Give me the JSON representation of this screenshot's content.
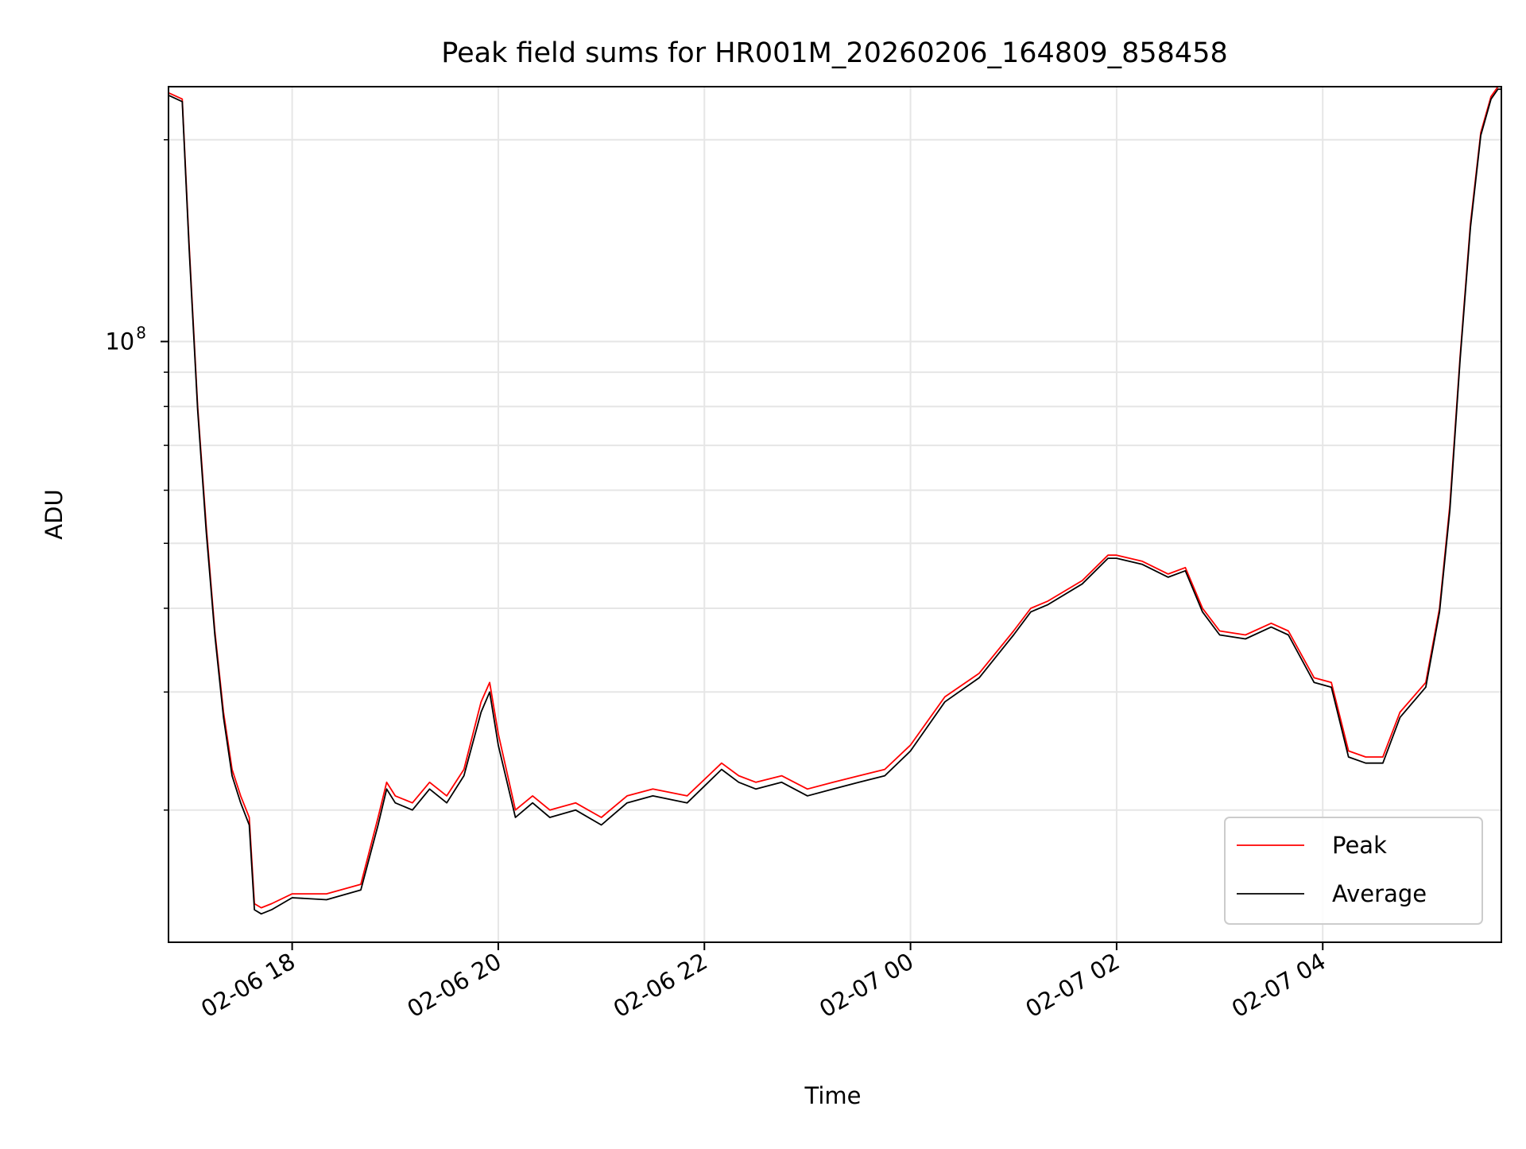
{
  "chart_data": {
    "type": "line",
    "title": "Peak field sums for HR001M_20260206_164809_858458",
    "xlabel": "Time",
    "ylabel": "ADU",
    "yscale": "log",
    "ylim": [
      12700000,
      240000000
    ],
    "xlim": [
      "2026-02-06 16:48",
      "2026-02-07 05:44"
    ],
    "x_ticks": [
      "02-06 18",
      "02-06 20",
      "02-06 22",
      "02-07 00",
      "02-07 02",
      "02-07 04"
    ],
    "x_tick_times": [
      "2026-02-06 18:00",
      "2026-02-06 20:00",
      "2026-02-06 22:00",
      "2026-02-07 00:00",
      "2026-02-07 02:00",
      "2026-02-07 04:00"
    ],
    "y_ticks": [
      {
        "base": "10",
        "exp": "8",
        "value": 100000000
      }
    ],
    "y_minor_ticks": [
      20000000,
      30000000,
      40000000,
      50000000,
      60000000,
      70000000,
      80000000,
      90000000,
      200000000
    ],
    "grid": true,
    "legend_position": "lower-right",
    "x": [
      "2026-02-06 16:48",
      "2026-02-06 16:56",
      "2026-02-06 17:00",
      "2026-02-06 17:05",
      "2026-02-06 17:10",
      "2026-02-06 17:15",
      "2026-02-06 17:20",
      "2026-02-06 17:25",
      "2026-02-06 17:30",
      "2026-02-06 17:35",
      "2026-02-06 17:38",
      "2026-02-06 17:42",
      "2026-02-06 17:48",
      "2026-02-06 18:00",
      "2026-02-06 18:20",
      "2026-02-06 18:40",
      "2026-02-06 18:50",
      "2026-02-06 18:55",
      "2026-02-06 19:00",
      "2026-02-06 19:10",
      "2026-02-06 19:20",
      "2026-02-06 19:30",
      "2026-02-06 19:40",
      "2026-02-06 19:50",
      "2026-02-06 19:55",
      "2026-02-06 20:00",
      "2026-02-06 20:10",
      "2026-02-06 20:20",
      "2026-02-06 20:30",
      "2026-02-06 20:45",
      "2026-02-06 21:00",
      "2026-02-06 21:15",
      "2026-02-06 21:30",
      "2026-02-06 21:50",
      "2026-02-06 22:10",
      "2026-02-06 22:20",
      "2026-02-06 22:30",
      "2026-02-06 22:45",
      "2026-02-06 23:00",
      "2026-02-06 23:15",
      "2026-02-06 23:30",
      "2026-02-06 23:45",
      "2026-02-07 00:00",
      "2026-02-07 00:20",
      "2026-02-07 00:40",
      "2026-02-07 01:00",
      "2026-02-07 01:10",
      "2026-02-07 01:20",
      "2026-02-07 01:40",
      "2026-02-07 01:55",
      "2026-02-07 02:00",
      "2026-02-07 02:15",
      "2026-02-07 02:30",
      "2026-02-07 02:40",
      "2026-02-07 02:50",
      "2026-02-07 03:00",
      "2026-02-07 03:15",
      "2026-02-07 03:30",
      "2026-02-07 03:40",
      "2026-02-07 03:55",
      "2026-02-07 04:05",
      "2026-02-07 04:15",
      "2026-02-07 04:25",
      "2026-02-07 04:35",
      "2026-02-07 04:45",
      "2026-02-07 05:00",
      "2026-02-07 05:08",
      "2026-02-07 05:14",
      "2026-02-07 05:20",
      "2026-02-07 05:26",
      "2026-02-07 05:32",
      "2026-02-07 05:38",
      "2026-02-07 05:42",
      "2026-02-07 05:44"
    ],
    "series": [
      {
        "name": "Peak",
        "color": "#ff0000",
        "values": [
          235000000,
          230000000,
          140000000,
          80000000,
          53000000,
          37000000,
          28000000,
          23000000,
          21000000,
          19500000,
          14500000,
          14300000,
          14500000,
          15000000,
          15000000,
          15500000,
          19500000,
          22000000,
          21000000,
          20500000,
          22000000,
          21000000,
          23000000,
          29000000,
          31000000,
          26000000,
          20000000,
          21000000,
          20000000,
          20500000,
          19500000,
          21000000,
          21500000,
          21000000,
          23500000,
          22500000,
          22000000,
          22500000,
          21500000,
          22000000,
          22500000,
          23000000,
          25000000,
          29500000,
          32000000,
          37000000,
          40000000,
          41000000,
          44000000,
          48000000,
          48000000,
          47000000,
          45000000,
          46000000,
          40000000,
          37000000,
          36500000,
          38000000,
          37000000,
          31500000,
          31000000,
          24500000,
          24000000,
          24000000,
          28000000,
          31000000,
          40000000,
          57000000,
          95000000,
          150000000,
          205000000,
          232000000,
          240000000,
          240000000
        ]
      },
      {
        "name": "Average",
        "color": "#000000",
        "values": [
          233000000,
          228000000,
          138000000,
          79000000,
          52000000,
          36500000,
          27500000,
          22500000,
          20500000,
          19000000,
          14200000,
          14000000,
          14200000,
          14800000,
          14700000,
          15200000,
          19000000,
          21500000,
          20500000,
          20000000,
          21500000,
          20500000,
          22500000,
          28000000,
          30000000,
          25000000,
          19500000,
          20500000,
          19500000,
          20000000,
          19000000,
          20500000,
          21000000,
          20500000,
          23000000,
          22000000,
          21500000,
          22000000,
          21000000,
          21500000,
          22000000,
          22500000,
          24500000,
          29000000,
          31500000,
          36500000,
          39500000,
          40500000,
          43500000,
          47500000,
          47500000,
          46500000,
          44500000,
          45500000,
          39500000,
          36500000,
          36000000,
          37500000,
          36500000,
          31000000,
          30500000,
          24000000,
          23500000,
          23500000,
          27500000,
          30500000,
          39500000,
          56000000,
          94000000,
          148000000,
          203000000,
          230000000,
          238000000,
          238000000
        ]
      }
    ]
  }
}
